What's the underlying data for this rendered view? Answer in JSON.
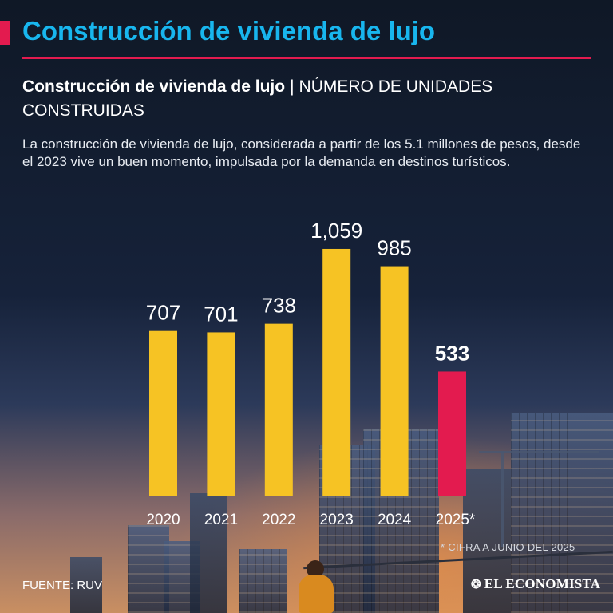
{
  "header": {
    "title": "Construcción de vivienda de lujo",
    "subtitle_bold": "Construcción de vivienda de lujo",
    "subtitle_separator": "|",
    "subtitle_rest": "NÚMERO DE UNIDADES CONSTRUIDAS",
    "description": "La construcción de vivienda de lujo, considerada a partir de los 5.1 millones de pesos, desde el 2023 vive un buen momento, impulsada por la demanda en destinos turísticos."
  },
  "footer": {
    "footnote": "* CIFRA A JUNIO DEL 2025",
    "source": "FUENTE: RUV",
    "logo": "EL ECONOMISTA"
  },
  "colors": {
    "title": "#18b6ee",
    "accent": "#e31b4f",
    "bar": "#f6c324",
    "highlight_bar": "#e31b4f"
  },
  "chart_data": {
    "type": "bar",
    "categories": [
      "2020",
      "2021",
      "2022",
      "2023",
      "2024",
      "2025*"
    ],
    "values": [
      707,
      701,
      738,
      1059,
      985,
      533
    ],
    "value_labels": [
      "707",
      "701",
      "738",
      "1,059",
      "985",
      "533"
    ],
    "highlight_index": 5,
    "ylim": [
      0,
      1100
    ],
    "grid": false,
    "legend": "none"
  }
}
